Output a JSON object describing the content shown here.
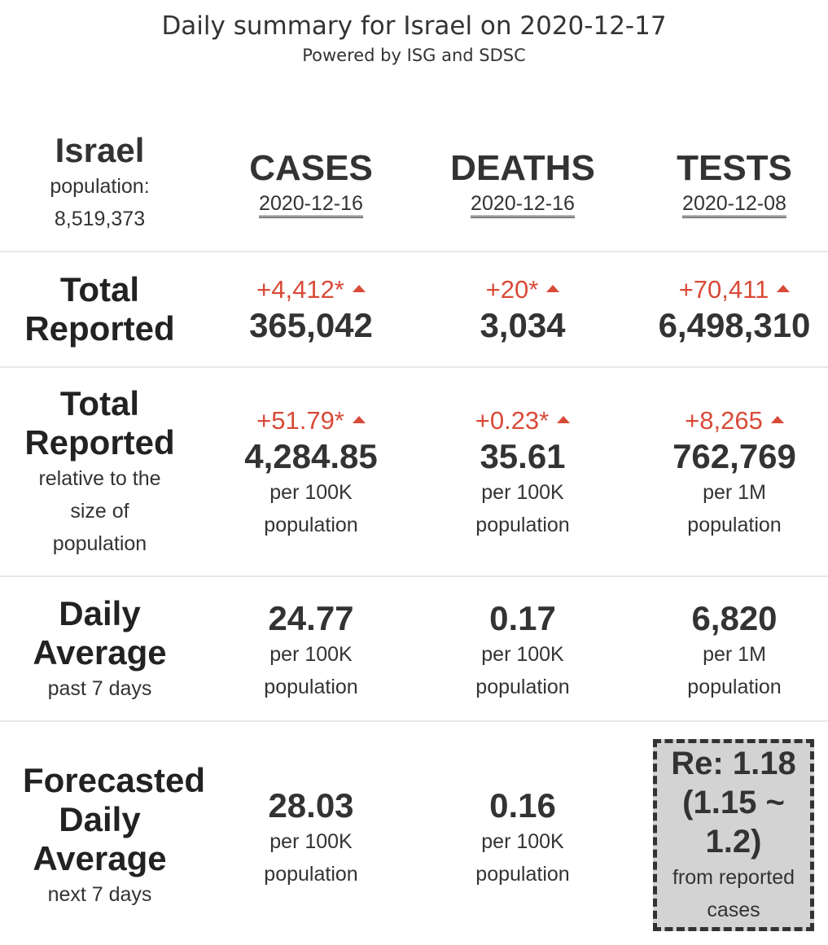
{
  "header": {
    "title": "Daily summary for Israel on 2020-12-17",
    "subtitle": "Powered by ISG and SDSC"
  },
  "country": {
    "name": "Israel",
    "population_label": "population:",
    "population": "8,519,373"
  },
  "columns": {
    "cases": {
      "label": "CASES",
      "date": "2020-12-16"
    },
    "deaths": {
      "label": "DEATHS",
      "date": "2020-12-16"
    },
    "tests": {
      "label": "TESTS",
      "date": "2020-12-08"
    }
  },
  "total_reported": {
    "label_line1": "Total",
    "label_line2": "Reported",
    "cases": {
      "delta": "+4,412*",
      "value": "365,042"
    },
    "deaths": {
      "delta": "+20*",
      "value": "3,034"
    },
    "tests": {
      "delta": "+70,411",
      "value": "6,498,310"
    }
  },
  "relative": {
    "label_line1": "Total",
    "label_line2": "Reported",
    "sub_line1": "relative to the",
    "sub_line2": "size of",
    "sub_line3": "population",
    "cases": {
      "delta": "+51.79*",
      "value": "4,284.85",
      "unit1": "per 100K",
      "unit2": "population"
    },
    "deaths": {
      "delta": "+0.23*",
      "value": "35.61",
      "unit1": "per 100K",
      "unit2": "population"
    },
    "tests": {
      "delta": "+8,265",
      "value": "762,769",
      "unit1": "per 1M",
      "unit2": "population"
    }
  },
  "daily_average": {
    "label_line1": "Daily",
    "label_line2": "Average",
    "sub": "past 7 days",
    "cases": {
      "value": "24.77",
      "unit1": "per 100K",
      "unit2": "population"
    },
    "deaths": {
      "value": "0.17",
      "unit1": "per 100K",
      "unit2": "population"
    },
    "tests": {
      "value": "6,820",
      "unit1": "per 1M",
      "unit2": "population"
    }
  },
  "forecast": {
    "label_line1": "Forecasted",
    "label_line2": "Daily",
    "label_line3": "Average",
    "sub": "next 7 days",
    "cases": {
      "value": "28.03",
      "unit1": "per 100K",
      "unit2": "population"
    },
    "deaths": {
      "value": "0.16",
      "unit1": "per 100K",
      "unit2": "population"
    },
    "re": {
      "line1": "Re: 1.18",
      "line2": "(1.15 ~",
      "line3": "1.2)",
      "sub1": "from reported",
      "sub2": "cases"
    }
  },
  "colors": {
    "increase": "#d94a38",
    "text": "#333333",
    "re_box_bg": "#d3d3d3"
  }
}
